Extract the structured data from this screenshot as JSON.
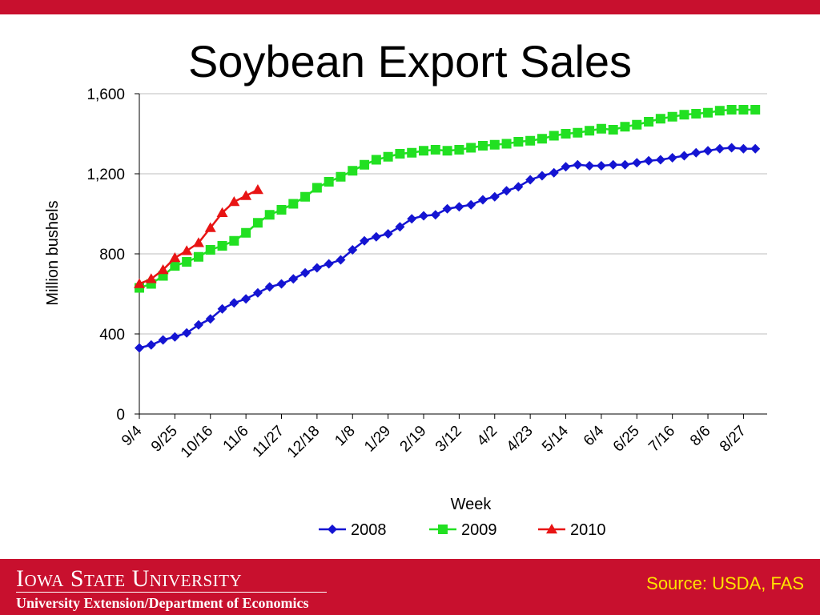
{
  "slide": {
    "title": "Soybean Export Sales",
    "source": "Source: USDA, FAS",
    "logo": "Iowa State University",
    "department": "University Extension/Department of Economics"
  },
  "colors": {
    "brand_red": "#c8102e",
    "source_yellow": "#ffe400",
    "series_2008": "#1414d2",
    "series_2009": "#22e022",
    "series_2010": "#e81414"
  },
  "chart_data": {
    "type": "line",
    "title": "Soybean Export Sales",
    "xlabel": "Week",
    "ylabel": "Million bushels",
    "ylim": [
      0,
      1600
    ],
    "yticks": [
      0,
      400,
      800,
      1200,
      1600
    ],
    "ytick_labels": [
      "0",
      "400",
      "800",
      "1,200",
      "1,600"
    ],
    "x_tick_labels": [
      "9/4",
      "9/25",
      "10/16",
      "11/6",
      "11/27",
      "12/18",
      "1/8",
      "1/29",
      "2/19",
      "3/12",
      "4/2",
      "4/23",
      "5/14",
      "6/4",
      "6/25",
      "7/16",
      "8/6",
      "8/27"
    ],
    "x_tick_weeks": [
      0,
      3,
      6,
      9,
      12,
      15,
      18,
      21,
      24,
      27,
      30,
      33,
      36,
      39,
      42,
      45,
      48,
      51
    ],
    "weeks_count": 53,
    "grid": "horizontal",
    "legend_position": "bottom",
    "series": [
      {
        "name": "2008",
        "marker": "diamond",
        "color": "#1414d2",
        "values": [
          330,
          345,
          370,
          385,
          405,
          445,
          475,
          525,
          555,
          575,
          605,
          635,
          650,
          675,
          705,
          730,
          750,
          770,
          820,
          865,
          885,
          900,
          935,
          975,
          990,
          995,
          1025,
          1035,
          1045,
          1070,
          1085,
          1115,
          1135,
          1170,
          1190,
          1205,
          1235,
          1245,
          1240,
          1240,
          1245,
          1245,
          1255,
          1265,
          1270,
          1280,
          1290,
          1305,
          1315,
          1325,
          1330,
          1325,
          1325
        ]
      },
      {
        "name": "2009",
        "marker": "square",
        "color": "#22e022",
        "values": [
          630,
          650,
          690,
          740,
          760,
          785,
          820,
          840,
          865,
          905,
          955,
          995,
          1020,
          1050,
          1085,
          1130,
          1160,
          1185,
          1215,
          1245,
          1270,
          1285,
          1300,
          1305,
          1315,
          1320,
          1315,
          1320,
          1330,
          1340,
          1345,
          1350,
          1360,
          1365,
          1375,
          1390,
          1400,
          1405,
          1415,
          1425,
          1420,
          1435,
          1445,
          1460,
          1475,
          1485,
          1495,
          1500,
          1505,
          1515,
          1520,
          1520,
          1520
        ]
      },
      {
        "name": "2010",
        "marker": "triangle",
        "color": "#e81414",
        "values": [
          650,
          675,
          720,
          780,
          815,
          855,
          930,
          1005,
          1060,
          1090,
          1120
        ]
      }
    ]
  }
}
